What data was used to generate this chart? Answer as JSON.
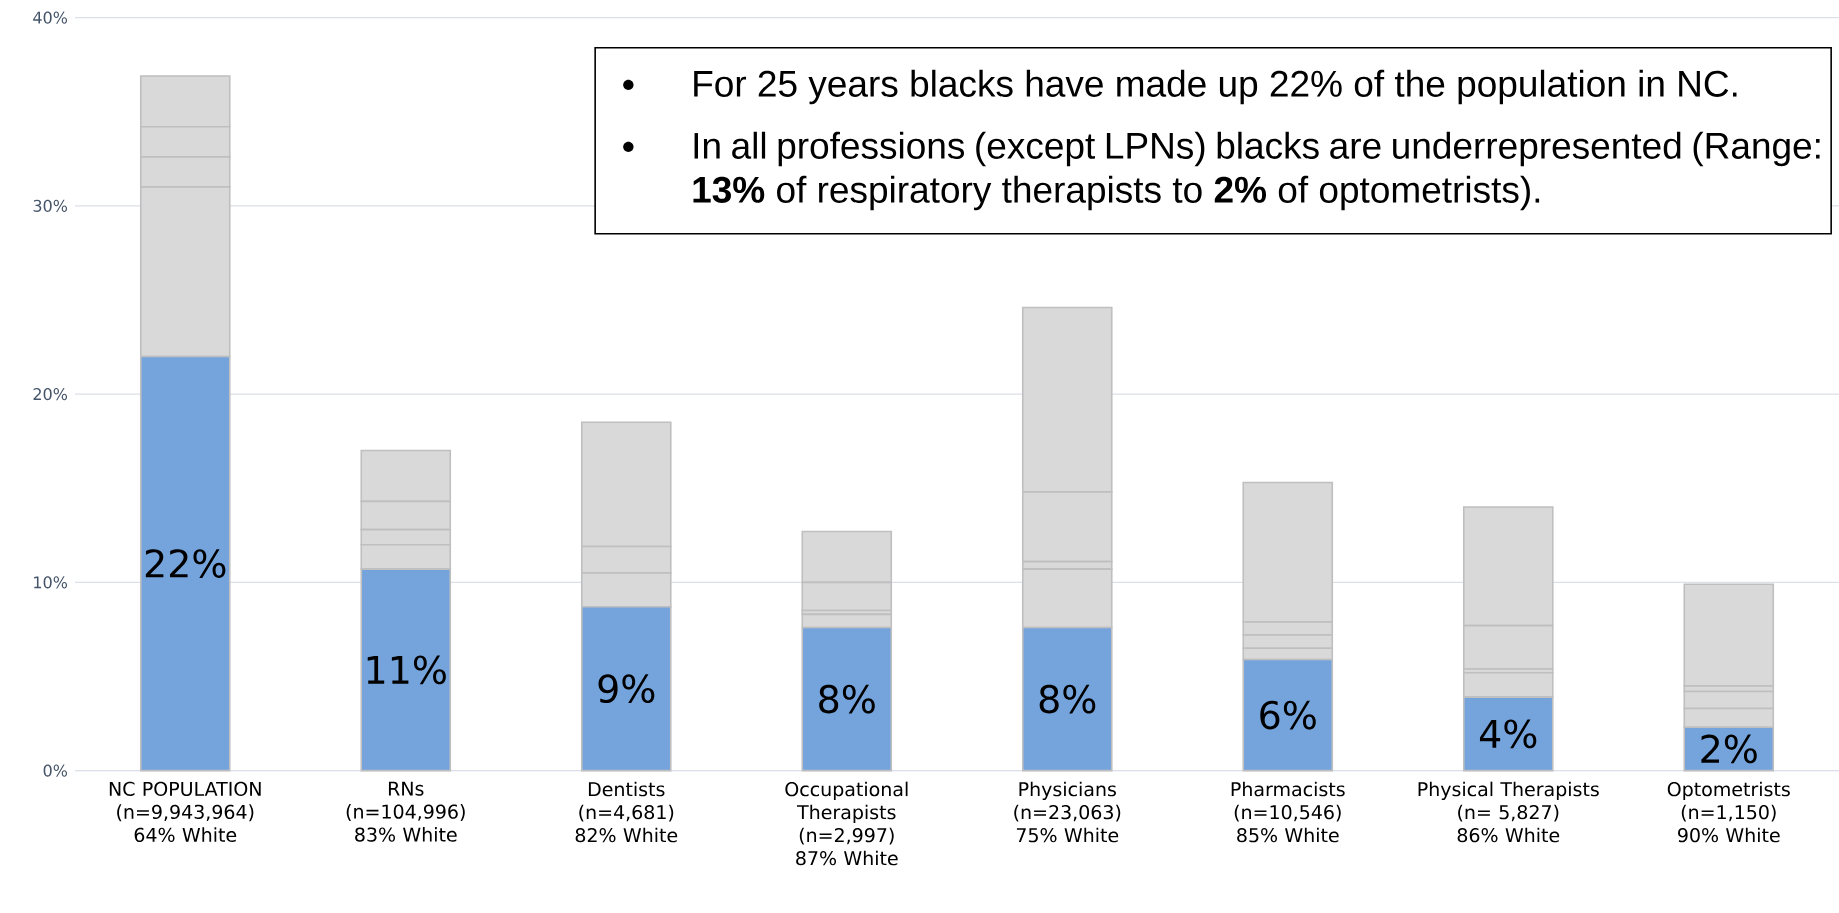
{
  "chart_data": {
    "type": "bar",
    "stacked": true,
    "categories": [
      "NC POPULATION\n(n=9,943,964)\n64% White",
      "RNs\n(n=104,996)\n83% White",
      "Dentists\n(n=4,681)\n82% White",
      "Occupational\nTherapists\n(n=2,997)\n87% White",
      "Physicians\n(n=23,063)\n75% White",
      "Pharmacists\n(n=10,546)\n85% White",
      "Physical Therapists\n(n= 5,827)\n86% White",
      "Optometrists\n(n=1,150)\n90% White"
    ],
    "series": [
      {
        "color": "#75a4dc",
        "values": [
          22,
          10.7,
          8.7,
          7.6,
          7.6,
          5.9,
          3.9,
          2.3
        ],
        "value_labels": [
          "22%",
          "11%",
          "9%",
          "8%",
          "8%",
          "6%",
          "4%",
          "2%"
        ]
      },
      {
        "color": "#d9d9d9",
        "values": [
          9.0,
          1.3,
          1.8,
          0.7,
          3.1,
          0.6,
          1.3,
          1.0
        ]
      },
      {
        "color": "#d9d9d9",
        "values": [
          1.6,
          0.8,
          1.4,
          0.2,
          0.4,
          0.7,
          0.2,
          0.9
        ]
      },
      {
        "color": "#d9d9d9",
        "values": [
          1.6,
          1.5,
          null,
          1.5,
          3.7,
          0.7,
          2.3,
          0.3
        ]
      },
      {
        "color": "#d9d9d9",
        "values": [
          2.7,
          2.7,
          6.6,
          2.7,
          9.8,
          7.4,
          6.3,
          5.4
        ]
      }
    ],
    "ylim": [
      0,
      40
    ],
    "yticks": [
      {
        "value": 0,
        "label": "0%"
      },
      {
        "value": 10,
        "label": "10%"
      },
      {
        "value": 20,
        "label": "20%"
      },
      {
        "value": 30,
        "label": "30%"
      },
      {
        "value": 40,
        "label": "40%"
      }
    ],
    "grid": "y",
    "annotations": [
      "For 25 years blacks have made up 22% of the population in NC.",
      "In all professions (except LPNs) blacks are underrepresented (Range: **13%** of respiratory therapists to **2%** of optometrists)."
    ]
  }
}
